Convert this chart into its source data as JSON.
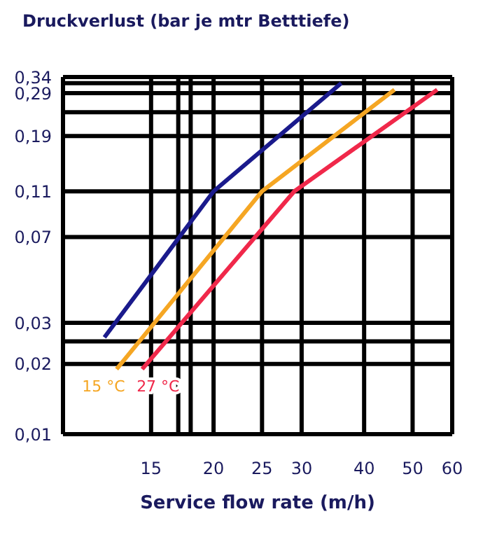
{
  "chart_data": {
    "type": "line",
    "title": "Druckverlust (bar je mtr Betttiefe)",
    "xlabel": "Service flow rate (m/h)",
    "log": "xy",
    "grid": true,
    "line_style": "solid",
    "xlim": [
      10,
      60
    ],
    "xticks": [
      15,
      {
        "value": 17,
        "label": null
      },
      {
        "value": 18,
        "label": null
      },
      20,
      25,
      30,
      40,
      50,
      60
    ],
    "ylim": [
      0.01,
      0.34
    ],
    "yticks": [
      {
        "value": 0.01,
        "label": "0,01"
      },
      {
        "value": 0.02,
        "label": "0,02"
      },
      {
        "value": 0.025,
        "label": null
      },
      {
        "value": 0.03,
        "label": "0,03"
      },
      {
        "value": 0.07,
        "label": "0,07"
      },
      {
        "value": 0.11,
        "label": "0,11"
      },
      {
        "value": 0.19,
        "label": "0,19"
      },
      {
        "value": 0.24,
        "label": null
      },
      {
        "value": 0.29,
        "label": "0,29"
      },
      {
        "value": 0.32,
        "label": null
      },
      {
        "value": 0.34,
        "label": "0,34"
      }
    ],
    "series": [
      {
        "color": "#1a1a8c",
        "x": [
          12.1,
          20,
          36
        ],
        "values": [
          0.026,
          0.11,
          0.32
        ]
      },
      {
        "name": "15 °C",
        "color": "#f5a623",
        "x": [
          12.8,
          25,
          46
        ],
        "values": [
          0.019,
          0.11,
          0.3
        ]
      },
      {
        "name": "27 °C",
        "color": "#f0284a",
        "x": [
          14.4,
          29,
          56
        ],
        "values": [
          0.019,
          0.11,
          0.3
        ]
      }
    ]
  }
}
